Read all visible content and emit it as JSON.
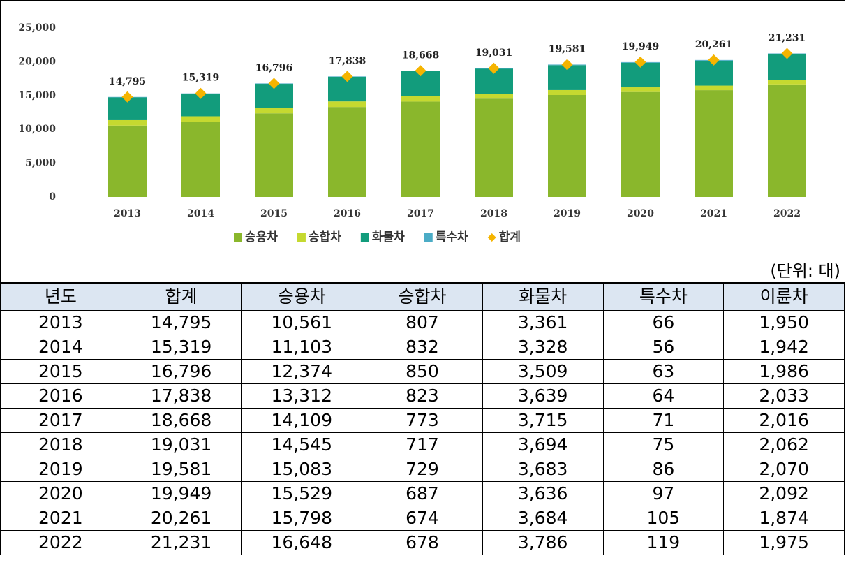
{
  "chart_data": {
    "type": "bar",
    "stacked": true,
    "categories": [
      "2013",
      "2014",
      "2015",
      "2016",
      "2017",
      "2018",
      "2019",
      "2020",
      "2021",
      "2022"
    ],
    "series": [
      {
        "name": "승용차",
        "color": "#8ab72c",
        "values": [
          10561,
          11103,
          12374,
          13312,
          14109,
          14545,
          15083,
          15529,
          15798,
          16648
        ]
      },
      {
        "name": "승합차",
        "color": "#c5d930",
        "values": [
          807,
          832,
          850,
          823,
          773,
          717,
          729,
          687,
          674,
          678
        ]
      },
      {
        "name": "화물차",
        "color": "#129c7c",
        "values": [
          3361,
          3328,
          3509,
          3639,
          3715,
          3694,
          3683,
          3636,
          3684,
          3786
        ]
      },
      {
        "name": "특수차",
        "color": "#4bacc6",
        "values": [
          66,
          56,
          63,
          64,
          71,
          75,
          86,
          97,
          105,
          119
        ]
      },
      {
        "name": "합계",
        "type": "scatter",
        "color": "#f5b400",
        "values": [
          14795,
          15319,
          16796,
          17838,
          18668,
          19031,
          19581,
          19949,
          20261,
          21231
        ],
        "value_labels": [
          "14,795",
          "15,319",
          "16,796",
          "17,838",
          "18,668",
          "19,031",
          "19,581",
          "19,949",
          "20,261",
          "21,231"
        ]
      }
    ],
    "ylim": [
      0,
      25000
    ],
    "yticks": [
      0,
      {
        "value": 5000,
        "label": "5,000"
      },
      {
        "value": 10000,
        "label": "10,000"
      },
      {
        "value": 15000,
        "label": "15,000"
      },
      {
        "value": 20000,
        "label": "20,000"
      },
      {
        "value": 25000,
        "label": "25,000"
      }
    ],
    "grid": false,
    "legend": "bottom"
  },
  "unit_note": "(단위: 대)",
  "table": {
    "header": [
      "년도",
      "합계",
      "승용차",
      "승합차",
      "화물차",
      "특수차",
      "이륜차"
    ],
    "rows": [
      [
        "2013",
        "14,795",
        "10,561",
        "807",
        "3,361",
        "66",
        "1,950"
      ],
      [
        "2014",
        "15,319",
        "11,103",
        "832",
        "3,328",
        "56",
        "1,942"
      ],
      [
        "2015",
        "16,796",
        "12,374",
        "850",
        "3,509",
        "63",
        "1,986"
      ],
      [
        "2016",
        "17,838",
        "13,312",
        "823",
        "3,639",
        "64",
        "2,033"
      ],
      [
        "2017",
        "18,668",
        "14,109",
        "773",
        "3,715",
        "71",
        "2,016"
      ],
      [
        "2018",
        "19,031",
        "14,545",
        "717",
        "3,694",
        "75",
        "2,062"
      ],
      [
        "2019",
        "19,581",
        "15,083",
        "729",
        "3,683",
        "86",
        "2,070"
      ],
      [
        "2020",
        "19,949",
        "15,529",
        "687",
        "3,636",
        "97",
        "2,092"
      ],
      [
        "2021",
        "20,261",
        "15,798",
        "674",
        "3,684",
        "105",
        "1,874"
      ],
      [
        "2022",
        "21,231",
        "16,648",
        "678",
        "3,786",
        "119",
        "1,975"
      ]
    ]
  }
}
